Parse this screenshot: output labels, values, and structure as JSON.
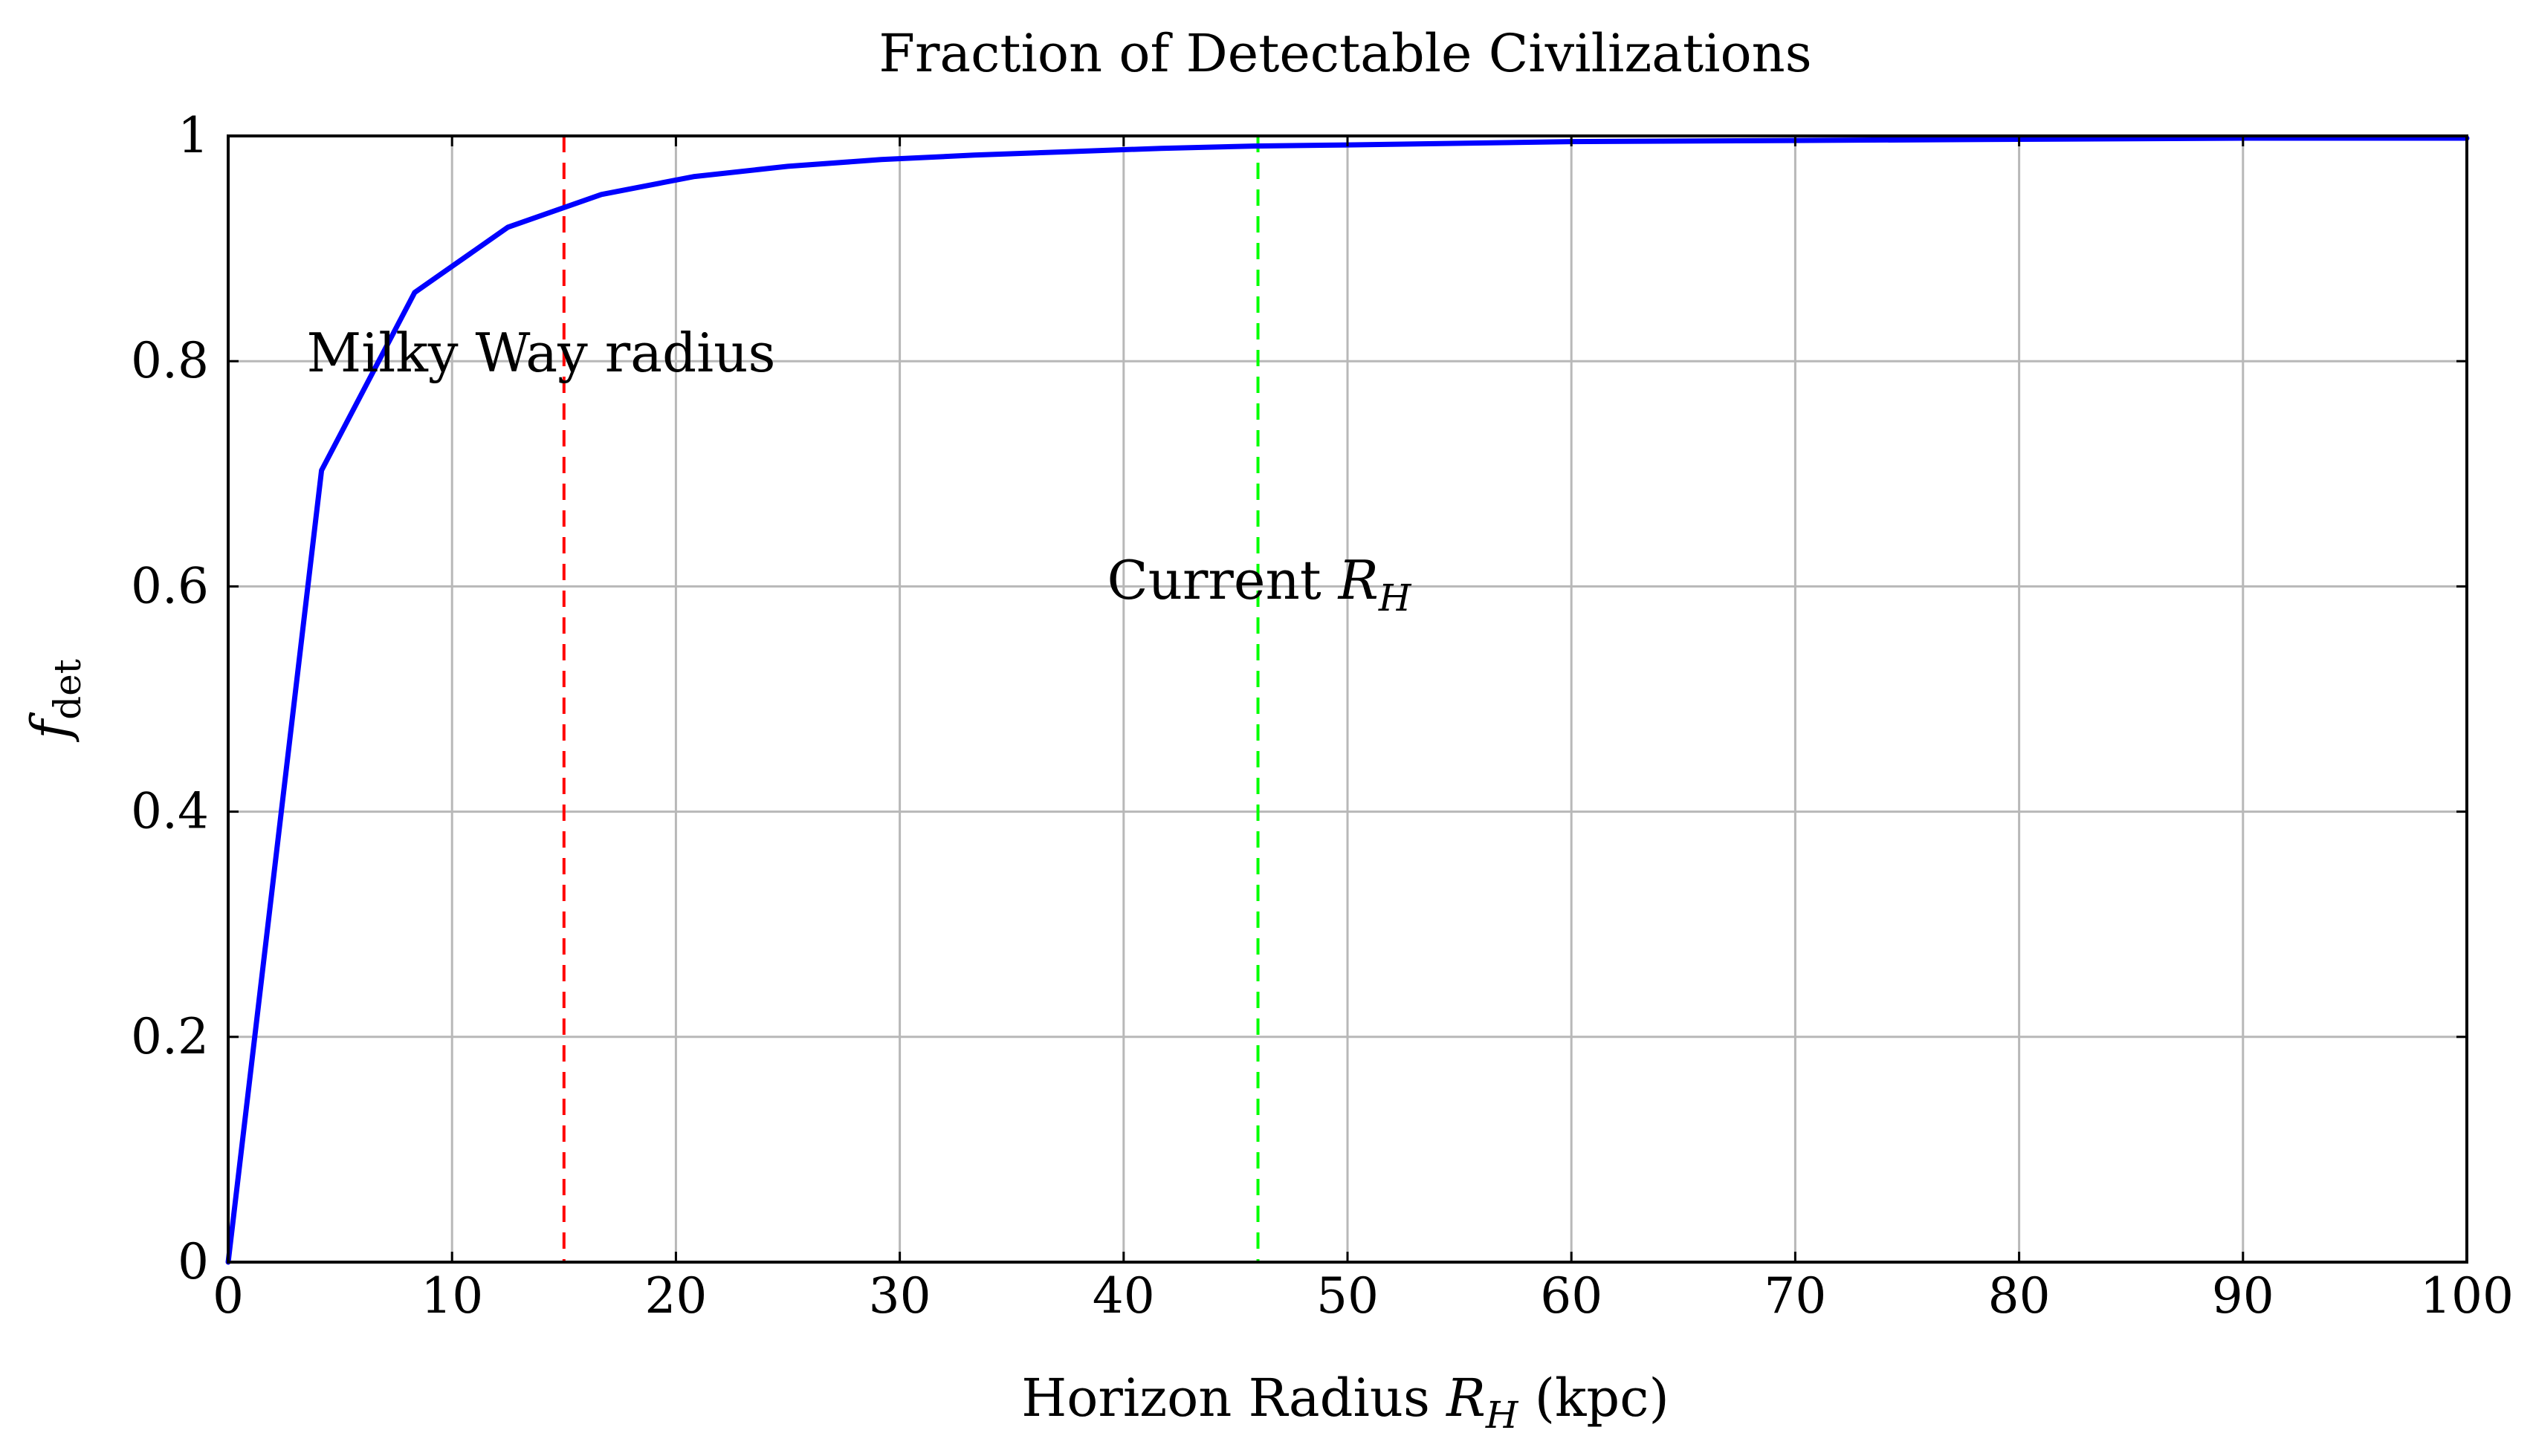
{
  "chart_data": {
    "type": "line",
    "title": "Fraction of Detectable Civilizations",
    "xlabel": {
      "prefix": "Horizon Radius ",
      "symbol": "R",
      "subscript": "H",
      "suffix": " (kpc)"
    },
    "ylabel": {
      "symbol": "f",
      "subscript": "det"
    },
    "xlim": [
      0,
      100
    ],
    "ylim": [
      0,
      1
    ],
    "xticks": [
      0,
      10,
      20,
      30,
      40,
      50,
      60,
      70,
      80,
      90,
      100
    ],
    "xtick_labels": [
      "0",
      "10",
      "20",
      "30",
      "40",
      "50",
      "60",
      "70",
      "80",
      "90",
      "100"
    ],
    "yticks": [
      0,
      0.2,
      0.4,
      0.6,
      0.8,
      1
    ],
    "ytick_labels": [
      "0",
      "0.2",
      "0.4",
      "0.6",
      "0.8",
      "1"
    ],
    "grid": true,
    "series": [
      {
        "name": "f_det",
        "color": "#0000ff",
        "x": [
          0,
          4.17,
          8.33,
          12.5,
          16.67,
          20.83,
          25,
          29.17,
          33.33,
          37.5,
          41.67,
          45.83,
          50,
          60,
          70,
          80,
          90,
          100
        ],
        "y": [
          0,
          0.703,
          0.861,
          0.919,
          0.948,
          0.964,
          0.973,
          0.979,
          0.983,
          0.986,
          0.989,
          0.991,
          0.992,
          0.995,
          0.996,
          0.997,
          0.998,
          0.998
        ]
      }
    ],
    "reference_lines": [
      {
        "name": "milky-way-radius-line",
        "x": 15,
        "color": "#ff0000",
        "style": "dashed"
      },
      {
        "name": "current-rh-line",
        "x": 46,
        "color": "#00ff00",
        "style": "dashed"
      }
    ],
    "annotations": [
      {
        "name": "milky-way-annotation",
        "text": "Milky Way radius",
        "x": 14.5,
        "y": 0.805
      },
      {
        "name": "current-rh-annotation",
        "prefix": "Current ",
        "symbol": "R",
        "subscript": "H",
        "x": 46,
        "y": 0.605
      }
    ]
  }
}
